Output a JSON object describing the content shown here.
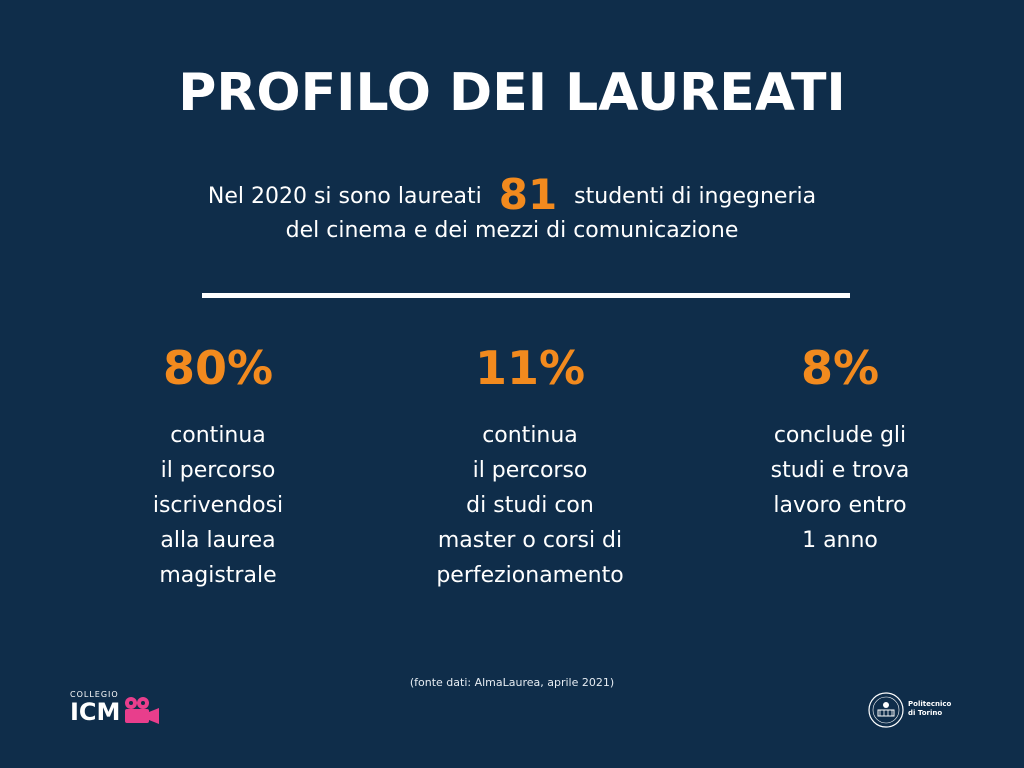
{
  "title": "PROFILO DEI LAUREATI",
  "intro": {
    "before": "Nel 2020 si sono laureati",
    "count": "81",
    "after": "studenti di ingegneria",
    "line2": "del cinema e dei mezzi di comunicazione"
  },
  "stats": [
    {
      "value": "80%",
      "text": "continua\nil percorso\niscrivendosi\nalla laurea\nmagistrale"
    },
    {
      "value": "11%",
      "text": "continua\nil percorso\ndi studi con\nmaster o corsi di\nperfezionamento"
    },
    {
      "value": "8%",
      "text": "conclude gli\nstudi e trova\nlavoro entro\n1 anno"
    }
  ],
  "source": "(fonte dati: AlmaLaurea, aprile 2021)",
  "logos": {
    "collegio_small": "COLLEGIO",
    "collegio_main": "ICM",
    "polito_line1": "Politecnico",
    "polito_line2": "di Torino"
  },
  "colors": {
    "background": "#0f2d4a",
    "accent": "#f28a1e",
    "logo_pink": "#e83e8c"
  }
}
